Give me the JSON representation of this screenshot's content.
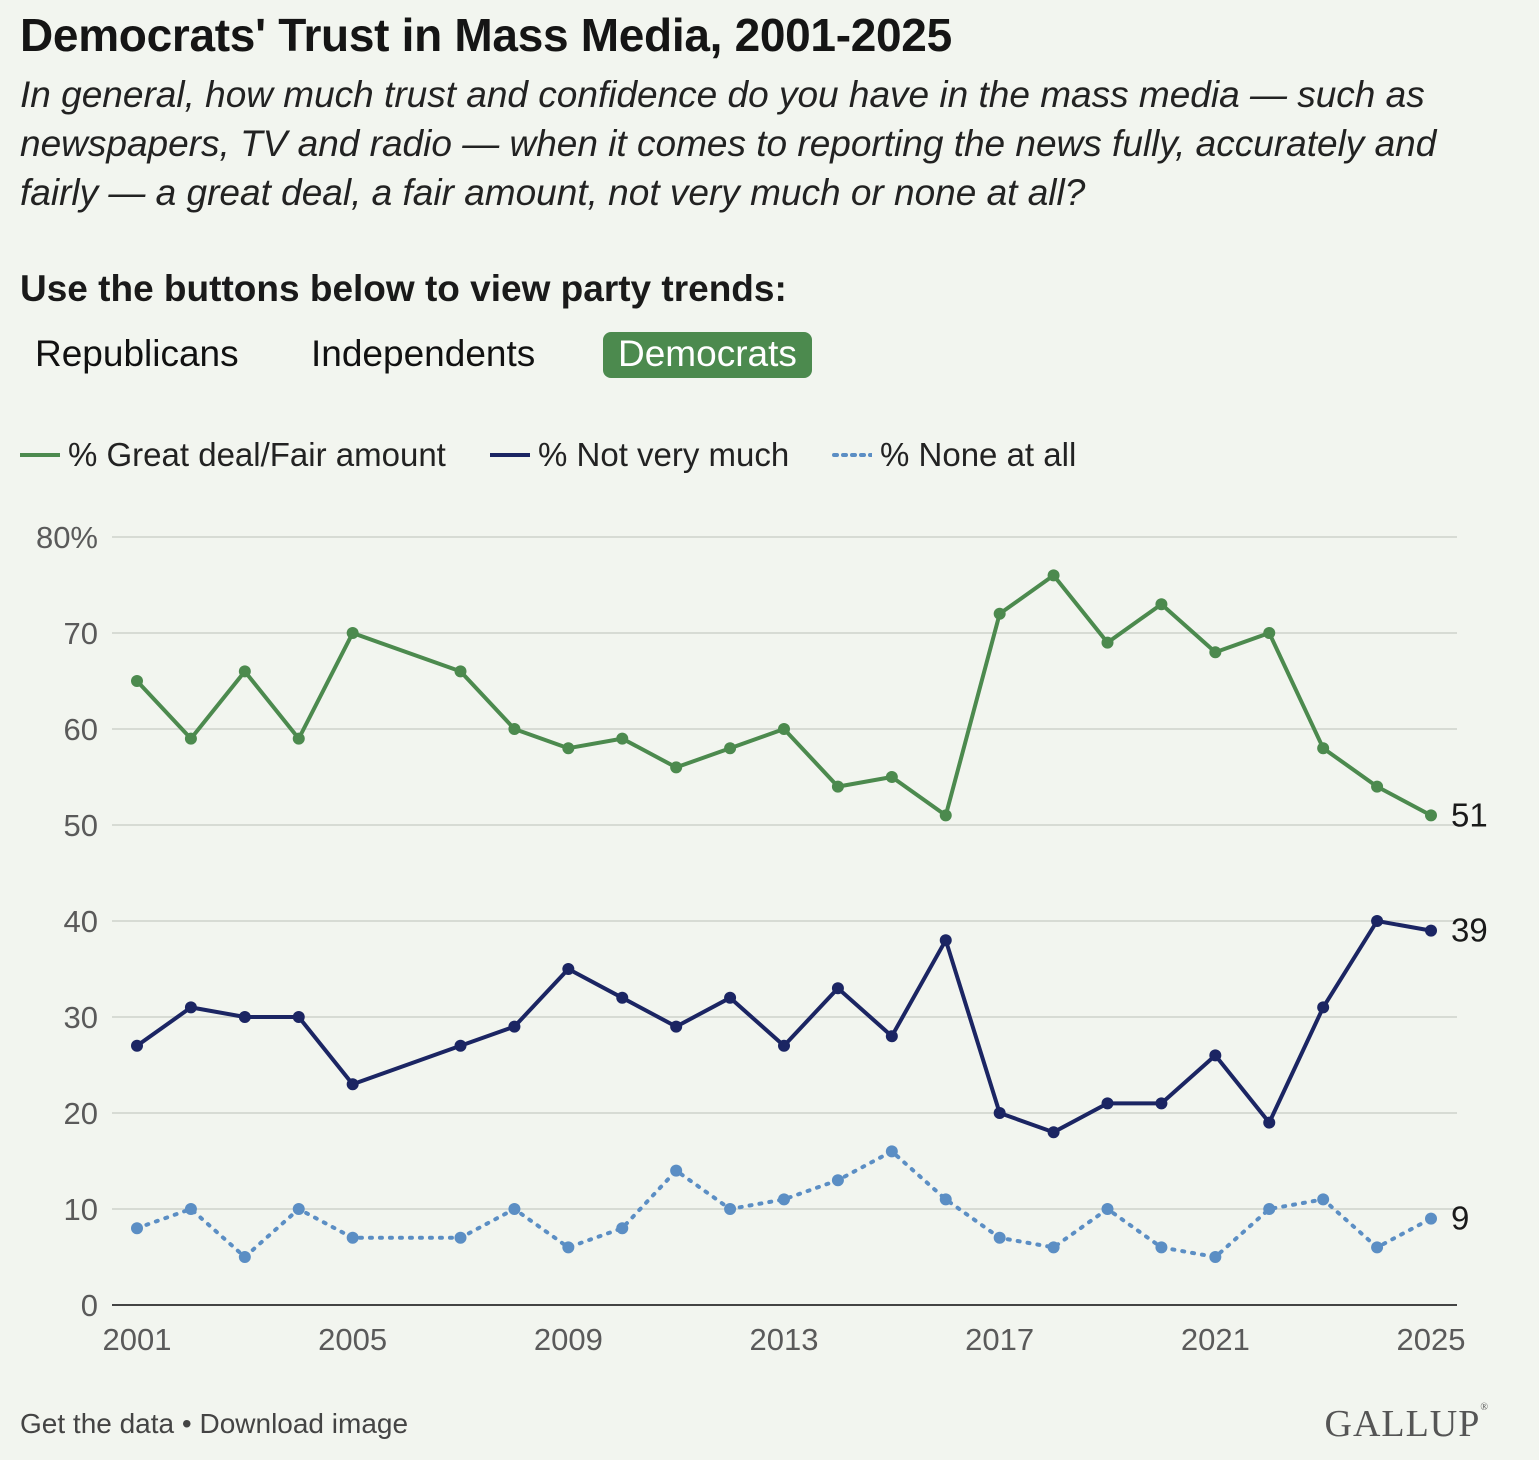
{
  "title": "Democrats' Trust in Mass Media, 2001-2025",
  "subtitle": "In general, how much trust and confidence do you have in the mass media — such as newspapers, TV and radio — when it comes to reporting the news fully, accurately and fairly — a great deal, a fair amount, not very much or none at all?",
  "prompt": "Use the buttons below to view party trends:",
  "party_buttons": [
    {
      "label": "Republicans",
      "active": false
    },
    {
      "label": "Independents",
      "active": false
    },
    {
      "label": "Democrats",
      "active": true
    }
  ],
  "footer": {
    "get_data": "Get the data",
    "separator": " • ",
    "download": "Download image"
  },
  "logo": "GALLUP",
  "colors": {
    "great_fair": "#4c8a4e",
    "not_very": "#1b2563",
    "none": "#5b8ec4",
    "active_button": "#4c8a4e"
  },
  "chart_data": {
    "type": "line",
    "x_ticks": [
      2001,
      2005,
      2009,
      2013,
      2017,
      2021,
      2025
    ],
    "xlim": [
      2001,
      2025
    ],
    "y_ticks": [
      0,
      10,
      20,
      30,
      40,
      50,
      60,
      70,
      80
    ],
    "y_tick_labels": [
      "0",
      "10",
      "20",
      "30",
      "40",
      "50",
      "60",
      "70",
      "80%"
    ],
    "ylim": [
      0,
      80
    ],
    "grid": true,
    "legend_position": "top-left",
    "x": [
      2001,
      2002,
      2003,
      2004,
      2005,
      2007,
      2008,
      2009,
      2010,
      2011,
      2012,
      2013,
      2014,
      2015,
      2016,
      2017,
      2018,
      2019,
      2020,
      2021,
      2022,
      2023,
      2024,
      2025
    ],
    "series": [
      {
        "name": "% Great deal/Fair amount",
        "style": "solid",
        "end_label": "51",
        "values": [
          65,
          59,
          66,
          59,
          70,
          66,
          60,
          58,
          59,
          56,
          58,
          60,
          54,
          55,
          51,
          72,
          76,
          69,
          73,
          68,
          70,
          58,
          54,
          51
        ]
      },
      {
        "name": "% Not very much",
        "style": "solid",
        "end_label": "39",
        "values": [
          27,
          31,
          30,
          30,
          23,
          27,
          29,
          35,
          32,
          29,
          32,
          27,
          33,
          28,
          38,
          20,
          18,
          21,
          21,
          26,
          19,
          31,
          40,
          39
        ]
      },
      {
        "name": "% None at all",
        "style": "dotted",
        "end_label": "9",
        "values": [
          8,
          10,
          5,
          10,
          7,
          7,
          10,
          6,
          8,
          14,
          10,
          11,
          13,
          16,
          11,
          7,
          6,
          10,
          6,
          5,
          10,
          11,
          6,
          9
        ]
      }
    ]
  }
}
